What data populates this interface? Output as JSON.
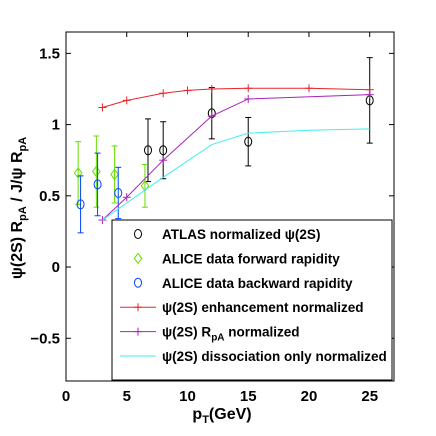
{
  "chart_data": {
    "type": "scatter",
    "xlabel": "p",
    "xlabel_sub": "T",
    "xlabel_unit": "(GeV)",
    "ylabel": "ψ(2S) R",
    "ylabel_sub1": "pA",
    "ylabel_mid": " / J/ψ R",
    "ylabel_sub2": "pA",
    "xlim": [
      0,
      27
    ],
    "ylim": [
      -0.8,
      1.65
    ],
    "x_ticks": [
      0,
      5,
      10,
      15,
      20,
      25
    ],
    "y_ticks": [
      -0.5,
      0,
      0.5,
      1,
      1.5
    ],
    "x_tick_labels": [
      "0",
      "5",
      "10",
      "15",
      "20",
      "25"
    ],
    "y_tick_labels": [
      "−0.5",
      "0",
      "0.5",
      "1",
      "1.5"
    ],
    "grid": false,
    "legend_position": "bottom-right",
    "series": [
      {
        "name": "ATLAS normalized ψ(2S)",
        "marker": "circle",
        "color": "#000000",
        "points": [
          {
            "x": 6.75,
            "y": 0.82,
            "err": 0.22
          },
          {
            "x": 8.0,
            "y": 0.82,
            "err": 0.2
          },
          {
            "x": 12.0,
            "y": 1.08,
            "err": 0.18
          },
          {
            "x": 15.0,
            "y": 0.88,
            "err": 0.17
          },
          {
            "x": 25.0,
            "y": 1.17,
            "err": 0.3
          }
        ]
      },
      {
        "name": "ALICE data forward rapidity",
        "marker": "diamond",
        "color": "#66dd00",
        "points": [
          {
            "x": 1.0,
            "y": 0.66,
            "err": 0.22
          },
          {
            "x": 2.5,
            "y": 0.67,
            "err": 0.25
          },
          {
            "x": 4.0,
            "y": 0.65,
            "err": 0.2
          },
          {
            "x": 6.5,
            "y": 0.57,
            "err": 0.15
          }
        ]
      },
      {
        "name": "ALICE data backward rapidity",
        "marker": "circle",
        "color": "#0044ff",
        "points": [
          {
            "x": 1.2,
            "y": 0.44,
            "err": 0.2
          },
          {
            "x": 2.6,
            "y": 0.58,
            "err": 0.22
          },
          {
            "x": 4.3,
            "y": 0.52,
            "err": 0.18
          }
        ]
      },
      {
        "name": "ψ(2S) enhancement normalized",
        "marker": "plus-line",
        "color": "#e8242c",
        "points": [
          {
            "x": 3.0,
            "y": 1.12
          },
          {
            "x": 5.0,
            "y": 1.17
          },
          {
            "x": 8.0,
            "y": 1.22
          },
          {
            "x": 10.0,
            "y": 1.24
          },
          {
            "x": 12.0,
            "y": 1.25
          },
          {
            "x": 15.0,
            "y": 1.255
          },
          {
            "x": 20.0,
            "y": 1.255
          },
          {
            "x": 25.0,
            "y": 1.245
          }
        ]
      },
      {
        "name": "ψ(2S) R",
        "name_sub": "pA",
        "name_suffix": " normalized",
        "marker": "plus-line",
        "color": "#aa22bb",
        "points": [
          {
            "x": 3.0,
            "y": 0.33
          },
          {
            "x": 5.0,
            "y": 0.49
          },
          {
            "x": 8.0,
            "y": 0.75
          },
          {
            "x": 12.0,
            "y": 1.06
          },
          {
            "x": 15.0,
            "y": 1.18
          },
          {
            "x": 25.0,
            "y": 1.21
          }
        ]
      },
      {
        "name": "ψ(2S) dissociation only normalized",
        "marker": "line",
        "color": "#44eeee",
        "points": [
          {
            "x": 3.0,
            "y": 0.33
          },
          {
            "x": 5.0,
            "y": 0.45
          },
          {
            "x": 8.0,
            "y": 0.63
          },
          {
            "x": 12.0,
            "y": 0.86
          },
          {
            "x": 15.0,
            "y": 0.94
          },
          {
            "x": 20.0,
            "y": 0.96
          },
          {
            "x": 25.0,
            "y": 0.97
          }
        ]
      }
    ]
  }
}
